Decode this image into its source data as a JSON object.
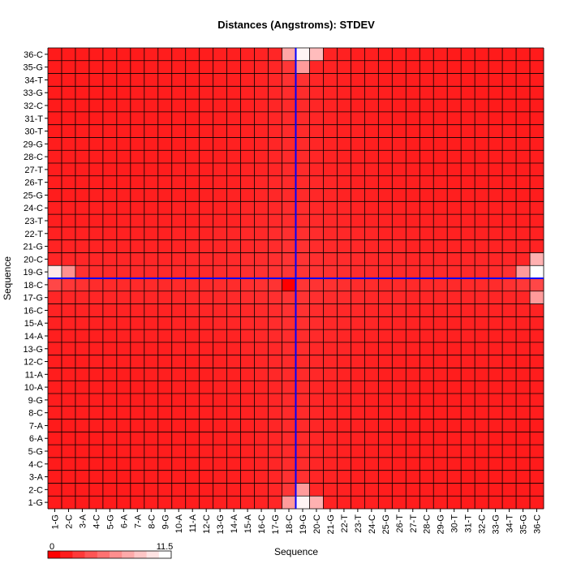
{
  "chart_data": {
    "type": "heatmap",
    "title": "Distances (Angstroms):  STDEV",
    "xlabel": "Sequence",
    "ylabel": "Sequence",
    "categories": [
      "1-G",
      "2-C",
      "3-A",
      "4-C",
      "5-G",
      "6-A",
      "7-A",
      "8-C",
      "9-G",
      "10-A",
      "11-A",
      "12-C",
      "13-G",
      "14-A",
      "15-A",
      "16-C",
      "17-G",
      "18-C",
      "19-G",
      "20-C",
      "21-G",
      "22-T",
      "23-T",
      "24-C",
      "25-G",
      "26-T",
      "27-T",
      "28-C",
      "29-G",
      "30-T",
      "31-T",
      "32-C",
      "33-G",
      "34-T",
      "35-G",
      "36-C"
    ],
    "color_scale": {
      "min": 0,
      "max": 11.5,
      "low_color": "#ff0000",
      "high_color": "#ffffff",
      "min_label": "0",
      "max_label": "11.5"
    },
    "grid": true,
    "highlight_lines": {
      "x": "19-G",
      "y": "18-C",
      "color": "#0000ff"
    },
    "value_model": {
      "description_values": "STDEV values estimated from cell shading",
      "base": 1.5,
      "peak_row_col": [
        18,
        19
      ],
      "notes": "Values near residues 18-19 and sequence ends are highest"
    },
    "values_highlights": [
      {
        "x": "19-G",
        "y": "1-G",
        "value": 11.0
      },
      {
        "x": "19-G",
        "y": "36-C",
        "value": 11.0
      },
      {
        "x": "1-G",
        "y": "19-G",
        "value": 10.5
      },
      {
        "x": "36-C",
        "y": "19-G",
        "value": 11.5
      },
      {
        "x": "20-C",
        "y": "1-G",
        "value": 8.0
      },
      {
        "x": "20-C",
        "y": "36-C",
        "value": 8.5
      },
      {
        "x": "18-C",
        "y": "1-G",
        "value": 7.0
      },
      {
        "x": "18-C",
        "y": "36-C",
        "value": 7.5
      },
      {
        "x": "36-C",
        "y": "20-C",
        "value": 8.0
      },
      {
        "x": "36-C",
        "y": "17-G",
        "value": 7.0
      },
      {
        "x": "35-G",
        "y": "19-G",
        "value": 7.0
      },
      {
        "x": "2-C",
        "y": "19-G",
        "value": 6.5
      },
      {
        "x": "19-G",
        "y": "2-C",
        "value": 7.0
      },
      {
        "x": "19-G",
        "y": "35-G",
        "value": 7.0
      },
      {
        "x": "18-C",
        "y": "18-C",
        "value": 0.0
      }
    ]
  }
}
